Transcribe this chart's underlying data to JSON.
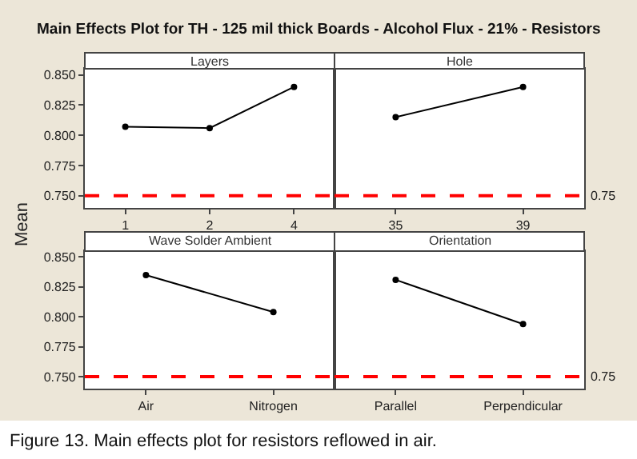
{
  "chart_data": [
    {
      "type": "line",
      "title": "Layers",
      "ylabel": "Mean",
      "annotations": [
        "Main Effects Plot for TH - 125 mil thick Boards - Alcohol Flux - 21% - Resistors",
        "Figure 13. Main effects plot for resistors reflowed in air."
      ],
      "categories": [
        "1",
        "2",
        "4"
      ],
      "series": [
        {
          "color": "#000000",
          "values": [
            0.807,
            0.806,
            0.84
          ]
        }
      ],
      "ylim": [
        0.74,
        0.855
      ],
      "yticks": [
        {
          "value": 0.75,
          "label": "0.750"
        },
        {
          "value": 0.775,
          "label": "0.775"
        },
        {
          "value": 0.8,
          "label": "0.800"
        },
        {
          "value": 0.825,
          "label": "0.825"
        },
        {
          "value": 0.85,
          "label": "0.850"
        }
      ],
      "ref_lines": [
        {
          "axis": "y",
          "value": 0.75,
          "color": "#ff0000",
          "line_style": "dashed"
        }
      ],
      "marker": "circle",
      "line_style": "solid"
    },
    {
      "type": "line",
      "title": "Hole",
      "categories": [
        "35",
        "39"
      ],
      "series": [
        {
          "color": "#000000",
          "values": [
            0.815,
            0.84
          ]
        }
      ],
      "ylim": [
        0.74,
        0.855
      ],
      "tick_labels": "x",
      "ref_lines": [
        {
          "axis": "y",
          "value": 0.75,
          "label": "0.75",
          "color": "#ff0000",
          "line_style": "dashed"
        }
      ],
      "marker": "circle",
      "line_style": "solid"
    },
    {
      "type": "line",
      "title": "Wave Solder Ambient",
      "categories": [
        "Air",
        "Nitrogen"
      ],
      "series": [
        {
          "color": "#000000",
          "values": [
            0.835,
            0.804
          ]
        }
      ],
      "ylim": [
        0.74,
        0.855
      ],
      "yticks": [
        {
          "value": 0.75,
          "label": "0.750"
        },
        {
          "value": 0.775,
          "label": "0.775"
        },
        {
          "value": 0.8,
          "label": "0.800"
        },
        {
          "value": 0.825,
          "label": "0.825"
        },
        {
          "value": 0.85,
          "label": "0.850"
        }
      ],
      "ref_lines": [
        {
          "axis": "y",
          "value": 0.75,
          "color": "#ff0000",
          "line_style": "dashed"
        }
      ],
      "marker": "circle",
      "line_style": "solid"
    },
    {
      "type": "line",
      "title": "Orientation",
      "categories": [
        "Parallel",
        "Perpendicular"
      ],
      "series": [
        {
          "color": "#000000",
          "values": [
            0.831,
            0.794
          ]
        }
      ],
      "ylim": [
        0.74,
        0.855
      ],
      "tick_labels": "x",
      "ref_lines": [
        {
          "axis": "y",
          "value": 0.75,
          "label": "0.75",
          "color": "#ff0000",
          "line_style": "dashed"
        }
      ],
      "marker": "circle",
      "line_style": "solid"
    }
  ]
}
